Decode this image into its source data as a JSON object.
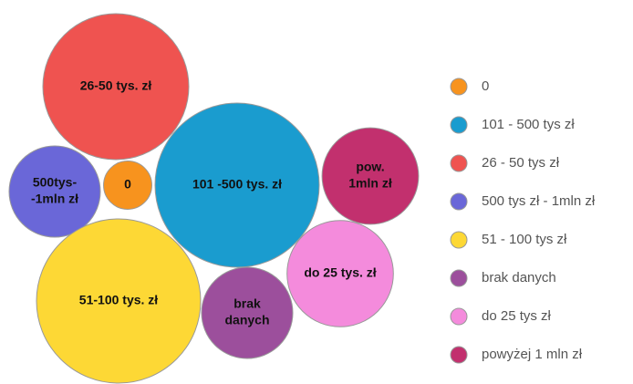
{
  "chart_data": {
    "type": "bubble",
    "series": [
      {
        "name": "0",
        "color": "#f7931e",
        "value": 7,
        "label": [
          "0"
        ]
      },
      {
        "name": "101 - 500 tys zł",
        "color": "#1a9ccf",
        "value": 81,
        "label": [
          "101 -500 tys. zł"
        ]
      },
      {
        "name": "26 - 50 tys zł",
        "color": "#ef5350",
        "value": 64,
        "label": [
          "26-50 tys. zł"
        ]
      },
      {
        "name": "500 tys zł - 1mln zł",
        "color": "#6a67d8",
        "value": 25,
        "label": [
          "500tys-",
          "-1mln zł"
        ]
      },
      {
        "name": "51 - 100 tys zł",
        "color": "#fdd835",
        "value": 81,
        "label": [
          "51-100 tys. zł"
        ]
      },
      {
        "name": "brak danych",
        "color": "#9c4f9c",
        "value": 25,
        "label": [
          "brak",
          "danych"
        ]
      },
      {
        "name": "do 25 tys zł",
        "color": "#f48bdc",
        "value": 34,
        "label": [
          "do 25 tys. zł"
        ]
      },
      {
        "name": "powyżej 1 mln zł",
        "color": "#c2306e",
        "value": 28,
        "label": [
          "pow.",
          "1mln zł"
        ]
      }
    ]
  }
}
